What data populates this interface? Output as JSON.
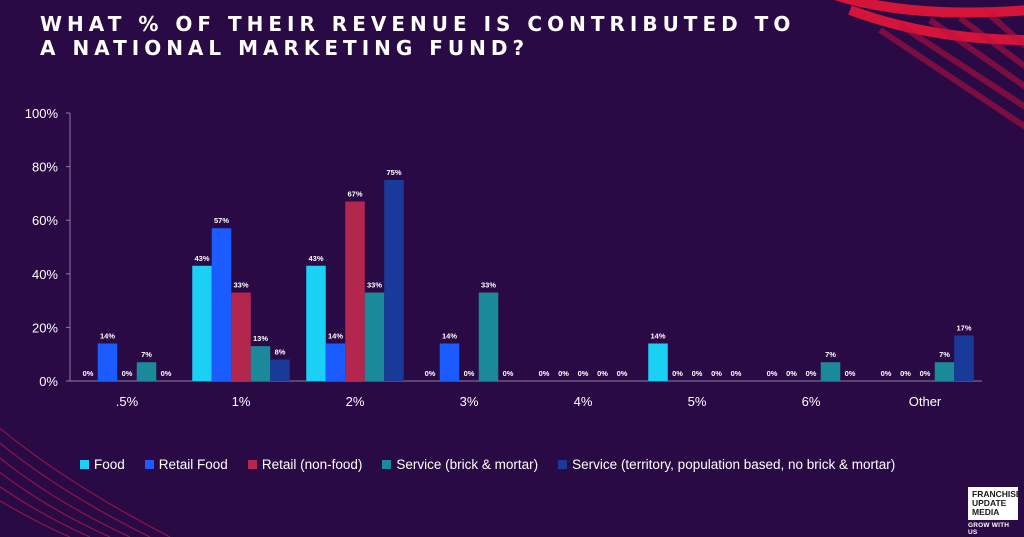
{
  "title": "WHAT % OF THEIR REVENUE IS CONTRIBUTED TO A NATIONAL MARKETING FUND?",
  "logo": {
    "lines": [
      "FRANCHISE",
      "UPDATE",
      "MEDIA"
    ],
    "tagline": "GROW WITH US"
  },
  "chart_data": {
    "type": "bar",
    "title": "",
    "xlabel": "",
    "ylabel": "",
    "ylim": [
      0,
      100
    ],
    "y_ticks": [
      "0%",
      "20%",
      "40%",
      "60%",
      "80%",
      "100%"
    ],
    "grid": false,
    "legend_position": "bottom",
    "categories": [
      ".5%",
      "1%",
      "2%",
      "3%",
      "4%",
      "5%",
      "6%",
      "Other"
    ],
    "series": [
      {
        "name": "Food",
        "color": "#1ad0f5",
        "values": [
          0,
          43,
          43,
          0,
          0,
          14,
          0,
          0
        ]
      },
      {
        "name": "Retail Food",
        "color": "#1a5cff",
        "values": [
          14,
          57,
          14,
          14,
          0,
          0,
          0,
          0
        ]
      },
      {
        "name": "Retail (non-food)",
        "color": "#b3264e",
        "values": [
          0,
          33,
          67,
          0,
          0,
          0,
          0,
          0
        ]
      },
      {
        "name": "Service (brick & mortar)",
        "color": "#1a8a9a",
        "values": [
          7,
          13,
          33,
          33,
          0,
          0,
          7,
          7
        ]
      },
      {
        "name": "Service (territory, population based, no brick & mortar)",
        "color": "#1a3a9a",
        "values": [
          0,
          8,
          75,
          0,
          0,
          0,
          0,
          17
        ]
      }
    ]
  }
}
